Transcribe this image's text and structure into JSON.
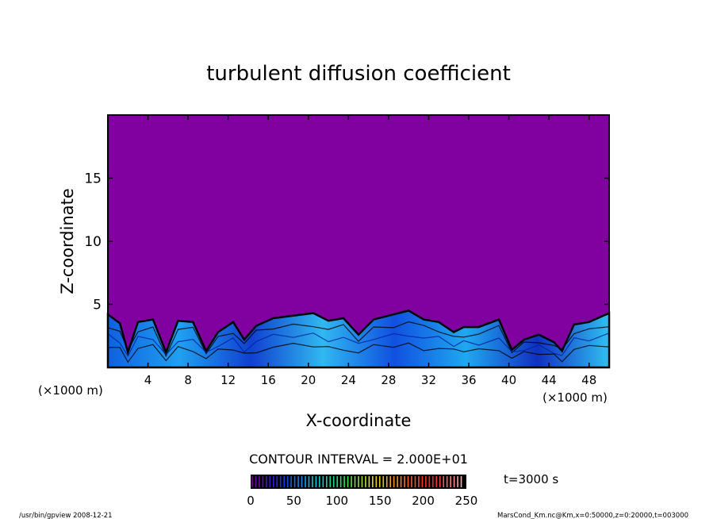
{
  "chart_data": {
    "type": "heatmap",
    "title": "turbulent diffusion coefficient",
    "xlabel": "X-coordinate",
    "ylabel": "Z-coordinate",
    "x_unit_label": "(×1000 m)",
    "xlim": [
      0,
      50
    ],
    "ylim": [
      0,
      20
    ],
    "x_ticks": [
      4,
      8,
      12,
      16,
      20,
      24,
      28,
      32,
      36,
      40,
      44,
      48
    ],
    "y_ticks": [
      5,
      10,
      15
    ],
    "contour_interval": "CONTOUR INTERVAL = 2.000E+01",
    "colorbar": {
      "range": [
        0,
        250
      ],
      "tick_labels": [
        "0",
        "50",
        "100",
        "150",
        "200",
        "250"
      ],
      "colors": [
        "#7a00a0",
        "#1030e0",
        "#10c0f0",
        "#20e060",
        "#e0e020",
        "#f08020",
        "#f02020",
        "#ffb0b0"
      ]
    },
    "time_label": "t=3000 s",
    "background_value_color": "#8000a0",
    "layer_top_approx_km": 4.5
  },
  "footer": {
    "left": "/usr/bin/gpview  2008-12-21",
    "right": "MarsCond_Km.nc@Km,x=0:50000,z=0:20000,t=003000"
  }
}
